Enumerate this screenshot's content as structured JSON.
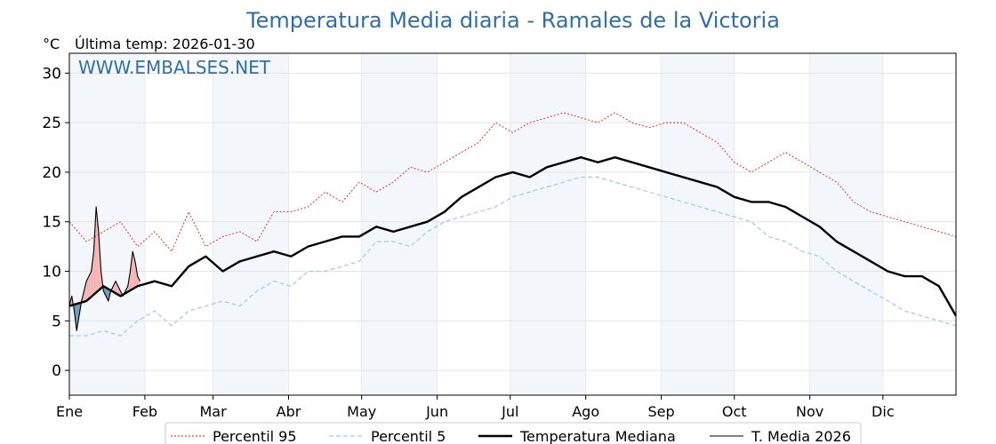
{
  "chart_data": {
    "type": "line",
    "title": "Temperatura Media diaria - Ramales de la Victoria",
    "unit_label": "°C",
    "last_temp_label": "Última temp: 2026-01-30",
    "watermark": "WWW.EMBALSES.NET",
    "ylim": [
      -2.5,
      32
    ],
    "yticks": [
      0,
      5,
      10,
      15,
      20,
      25,
      30
    ],
    "months": [
      "Ene",
      "Feb",
      "Mar",
      "Abr",
      "May",
      "Jun",
      "Jul",
      "Ago",
      "Sep",
      "Oct",
      "Nov",
      "Dic"
    ],
    "month_start_days": [
      1,
      32,
      60,
      91,
      121,
      152,
      182,
      213,
      244,
      274,
      305,
      335
    ],
    "days_in_year": 365,
    "grid": true,
    "legend_position": "bottom-center",
    "series": [
      {
        "name": "Percentil 95",
        "style": "dotted",
        "color": "#e31a1c",
        "x": [
          1,
          8,
          15,
          22,
          29,
          36,
          43,
          50,
          57,
          64,
          71,
          78,
          85,
          92,
          99,
          106,
          113,
          120,
          127,
          134,
          141,
          148,
          155,
          162,
          169,
          176,
          183,
          190,
          197,
          204,
          211,
          218,
          225,
          232,
          239,
          246,
          253,
          260,
          267,
          274,
          281,
          288,
          295,
          302,
          309,
          316,
          323,
          330,
          337,
          344,
          351,
          358,
          365
        ],
        "y": [
          15,
          13,
          14,
          15,
          12.5,
          14,
          12,
          16,
          12.5,
          13.5,
          14,
          13,
          16,
          16,
          16.5,
          18,
          17,
          19,
          18,
          19,
          20.5,
          20,
          21,
          22,
          23,
          25,
          24,
          25,
          25.5,
          26,
          25.5,
          25,
          26,
          25,
          24.5,
          25,
          25,
          24,
          23,
          21,
          20,
          21,
          22,
          21,
          20,
          19,
          17,
          16,
          15.5,
          15,
          14.5,
          14,
          13.5
        ]
      },
      {
        "name": "Percentil 5",
        "style": "dashed",
        "color": "#9ecae1",
        "x": [
          1,
          8,
          15,
          22,
          29,
          36,
          43,
          50,
          57,
          64,
          71,
          78,
          85,
          92,
          99,
          106,
          113,
          120,
          127,
          134,
          141,
          148,
          155,
          162,
          169,
          176,
          183,
          190,
          197,
          204,
          211,
          218,
          225,
          232,
          239,
          246,
          253,
          260,
          267,
          274,
          281,
          288,
          295,
          302,
          309,
          316,
          323,
          330,
          337,
          344,
          351,
          358,
          365
        ],
        "y": [
          3.5,
          3.5,
          4,
          3.5,
          5,
          6,
          4.5,
          6,
          6.5,
          7,
          6.5,
          8,
          9,
          8.5,
          10,
          10,
          10.5,
          11,
          13,
          13,
          12.5,
          14,
          15,
          15.5,
          16,
          16.5,
          17.5,
          18,
          18.5,
          19,
          19.5,
          19.5,
          19,
          18.5,
          18,
          17.5,
          17,
          16.5,
          16,
          15.5,
          15,
          13.5,
          13,
          12,
          11.5,
          10,
          9,
          8,
          7,
          6,
          5.5,
          5,
          4.5
        ]
      },
      {
        "name": "Temperatura Mediana",
        "style": "solid-thick",
        "color": "#000000",
        "x": [
          1,
          8,
          15,
          22,
          29,
          36,
          43,
          50,
          57,
          64,
          71,
          78,
          85,
          92,
          99,
          106,
          113,
          120,
          127,
          134,
          141,
          148,
          155,
          162,
          169,
          176,
          183,
          190,
          197,
          204,
          211,
          218,
          225,
          232,
          239,
          246,
          253,
          260,
          267,
          274,
          281,
          288,
          295,
          302,
          309,
          316,
          323,
          330,
          337,
          344,
          351,
          358,
          365
        ],
        "y": [
          6.5,
          7,
          8.5,
          7.5,
          8.5,
          9,
          8.5,
          10.5,
          11.5,
          10,
          11,
          11.5,
          12,
          11.5,
          12.5,
          13,
          13.5,
          13.5,
          14.5,
          14,
          14.5,
          15,
          16,
          17.5,
          18.5,
          19.5,
          20,
          19.5,
          20.5,
          21,
          21.5,
          21,
          21.5,
          21,
          20.5,
          20,
          19.5,
          19,
          18.5,
          17.5,
          17,
          17,
          16.5,
          15.5,
          14.5,
          13,
          12,
          11,
          10,
          9.5,
          9.5,
          8.5,
          5.5
        ]
      },
      {
        "name": "T. Media 2026",
        "style": "solid",
        "color": "#000000",
        "x": [
          1,
          2,
          3,
          4,
          5,
          6,
          7,
          8,
          9,
          10,
          11,
          12,
          13,
          14,
          15,
          16,
          17,
          18,
          19,
          20,
          21,
          22,
          23,
          24,
          25,
          26,
          27,
          28,
          29,
          30
        ],
        "y": [
          6.5,
          7.5,
          6,
          4,
          5.5,
          7,
          8,
          9,
          9.5,
          10,
          12,
          16.5,
          14,
          10,
          8,
          7.5,
          7,
          8,
          8.5,
          9,
          8.5,
          8,
          7.5,
          8,
          8.5,
          10,
          12,
          11,
          9.5,
          9
        ]
      }
    ]
  },
  "legend": {
    "items": [
      {
        "label": "Percentil 95"
      },
      {
        "label": "Percentil 5"
      },
      {
        "label": "Temperatura Mediana"
      },
      {
        "label": "T. Media 2026"
      }
    ]
  }
}
